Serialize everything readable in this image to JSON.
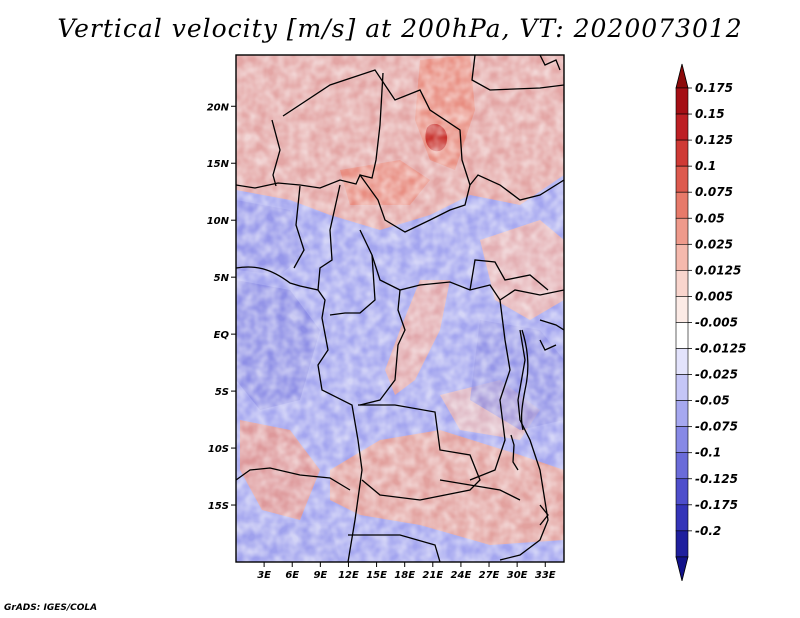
{
  "page": {
    "title": "Vertical velocity [m/s] at 200hPa, VT: 2020073012",
    "footer": "GrADS: IGES/COLA"
  },
  "chart_data": {
    "type": "heatmap",
    "title": "Vertical velocity [m/s] at 200hPa, VT: 2020073012",
    "variable": "Vertical velocity",
    "units": "m/s",
    "level": "200hPa",
    "valid_time": "2020073012",
    "xlabel": "",
    "ylabel": "",
    "xlim": [
      0,
      35
    ],
    "ylim": [
      -20,
      24.5
    ],
    "x_ticks": [
      {
        "value": 3,
        "label": "3E"
      },
      {
        "value": 6,
        "label": "6E"
      },
      {
        "value": 9,
        "label": "9E"
      },
      {
        "value": 12,
        "label": "12E"
      },
      {
        "value": 15,
        "label": "15E"
      },
      {
        "value": 18,
        "label": "18E"
      },
      {
        "value": 21,
        "label": "21E"
      },
      {
        "value": 24,
        "label": "24E"
      },
      {
        "value": 27,
        "label": "27E"
      },
      {
        "value": 30,
        "label": "30E"
      },
      {
        "value": 33,
        "label": "33E"
      }
    ],
    "y_ticks": [
      {
        "value": 20,
        "label": "20N"
      },
      {
        "value": 15,
        "label": "15N"
      },
      {
        "value": 10,
        "label": "10N"
      },
      {
        "value": 5,
        "label": "5N"
      },
      {
        "value": 0,
        "label": "EQ"
      },
      {
        "value": -5,
        "label": "5S"
      },
      {
        "value": -10,
        "label": "10S"
      },
      {
        "value": -15,
        "label": "15S"
      }
    ],
    "colorbar": {
      "levels": [
        {
          "label": "0.175",
          "color": "#a50f15"
        },
        {
          "label": "0.15",
          "color": "#bd1f24"
        },
        {
          "label": "0.125",
          "color": "#cf3a35"
        },
        {
          "label": "0.1",
          "color": "#dd5a4e"
        },
        {
          "label": "0.075",
          "color": "#e77a6a"
        },
        {
          "label": "0.05",
          "color": "#ef9a8b"
        },
        {
          "label": "0.025",
          "color": "#f5b9ad"
        },
        {
          "label": "0.0125",
          "color": "#f9d5cd"
        },
        {
          "label": "0.005",
          "color": "#fcebe6"
        },
        {
          "label": "-0.005",
          "color": "#ffffff"
        },
        {
          "label": "-0.0125",
          "color": "#e3e3fc"
        },
        {
          "label": "-0.025",
          "color": "#c5c6f7"
        },
        {
          "label": "-0.05",
          "color": "#a6a8f0"
        },
        {
          "label": "-0.075",
          "color": "#8789e6"
        },
        {
          "label": "-0.1",
          "color": "#6a6bd9"
        },
        {
          "label": "-0.125",
          "color": "#4e4ecc"
        },
        {
          "label": "-0.175",
          "color": "#3434b8"
        },
        {
          "label": "-0.2",
          "color": "#1f1f9e"
        }
      ],
      "top_color": "#8c0a0a",
      "bottom_color": "#12128a"
    }
  }
}
